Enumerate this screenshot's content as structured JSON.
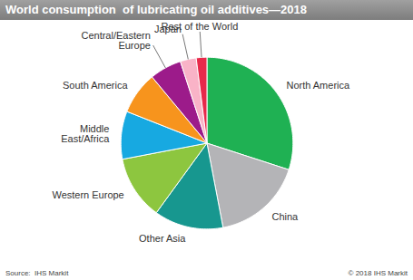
{
  "chart_data": {
    "type": "pie",
    "title": "World consumption  of lubricating oil additives—2018",
    "categories": [
      "North America",
      "China",
      "Other Asia",
      "Western Europe",
      "Middle East/Africa",
      "South America",
      "Central/Eastern Europe",
      "Japan",
      "Rest of the World"
    ],
    "values": [
      30,
      17,
      13,
      12,
      9,
      8,
      6,
      3,
      2
    ],
    "colors": [
      "#1fb153",
      "#b4b4b7",
      "#17978f",
      "#8dc63f",
      "#17a9e1",
      "#f7941d",
      "#9c1b8a",
      "#f9b3c7",
      "#e8294a"
    ],
    "source": "Source:  IHS Markit",
    "copyright": "© 2018 IHS Markit"
  }
}
